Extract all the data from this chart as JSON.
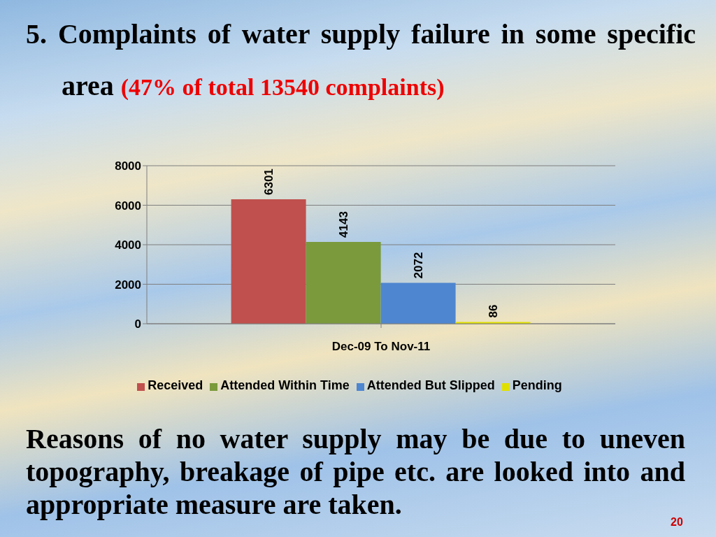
{
  "chart_data": {
    "type": "bar",
    "title": "5. Complaints of water supply failure in some specific area",
    "subtitle": "(47% of total 13540 complaints)",
    "categories": [
      "Dec-09 To Nov-11"
    ],
    "series": [
      {
        "name": "Received",
        "color": "#c0504d",
        "values": [
          6301
        ]
      },
      {
        "name": "Attended Within Time",
        "color": "#7a9a3c",
        "values": [
          4143
        ]
      },
      {
        "name": "Attended But Slipped",
        "color": "#4f86d0",
        "values": [
          2072
        ]
      },
      {
        "name": "Pending",
        "color": "#e0e000",
        "values": [
          86
        ]
      }
    ],
    "ylim": [
      0,
      8000
    ],
    "yticks": [
      0,
      2000,
      4000,
      6000,
      8000
    ],
    "grid": "y",
    "legend": "bottom",
    "data_labels": true,
    "annotations": [
      "Reasons of no water supply may be due to uneven topography, breakage of pipe etc. are looked into and appropriate measure are taken.",
      "20"
    ]
  }
}
